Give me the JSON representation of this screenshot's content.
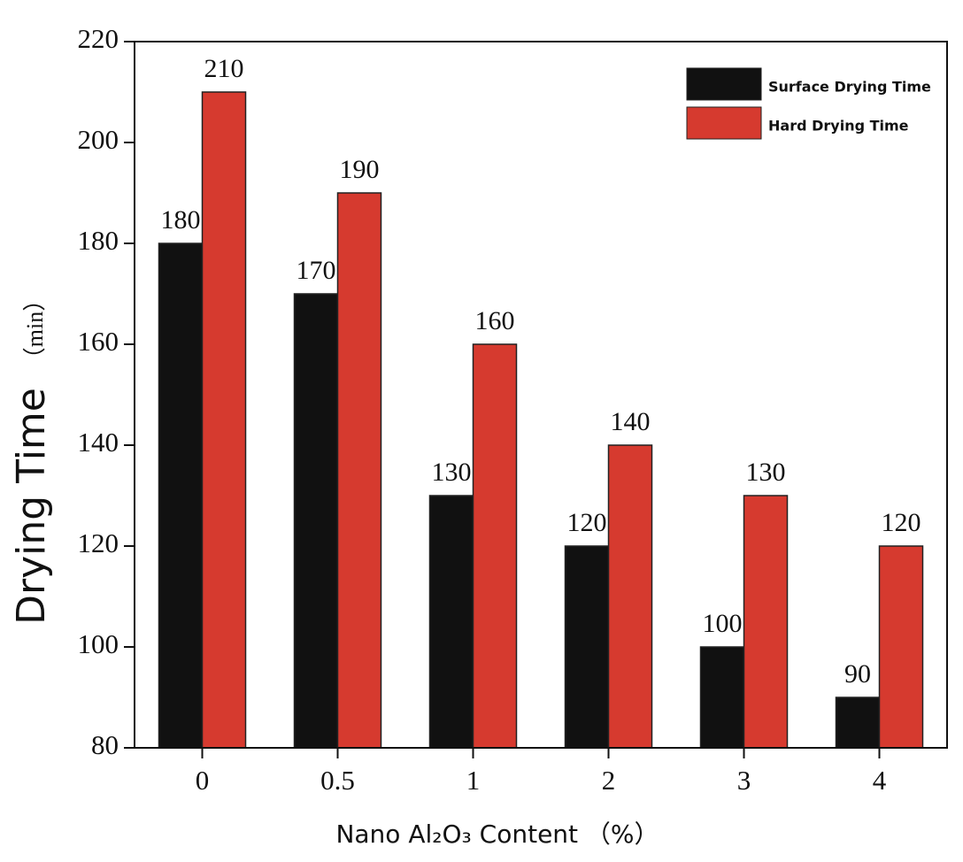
{
  "chart_data": {
    "type": "bar",
    "ylabel": "Drying Time",
    "yunit": "（min）",
    "xlabel": "Nano Al₂O₃ Content （%）",
    "categories": [
      "0",
      "0.5",
      "1",
      "2",
      "3",
      "4"
    ],
    "series": [
      {
        "name": "Surface Drying Time",
        "color": "#111111",
        "values": [
          180,
          170,
          130,
          120,
          100,
          90
        ]
      },
      {
        "name": "Hard Drying Time",
        "color": "#d63a2f",
        "values": [
          210,
          190,
          160,
          140,
          130,
          120
        ]
      }
    ],
    "ylim": [
      80,
      220
    ],
    "yticks": [
      80,
      100,
      120,
      140,
      160,
      180,
      200,
      220
    ],
    "legend": "upper right"
  }
}
